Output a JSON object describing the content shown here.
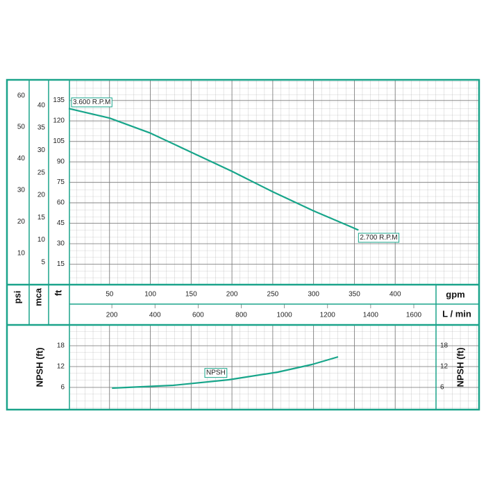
{
  "chart_data": [
    {
      "type": "line",
      "xlabel": "gpm",
      "x2label": "L / min",
      "ylabel": "ft",
      "mca_label": "mca",
      "psi_label": "psi",
      "xlim": [
        0,
        450
      ],
      "xticks": [
        50,
        100,
        150,
        200,
        250,
        300,
        350,
        400
      ],
      "x2lim": [
        0,
        1703
      ],
      "x2ticks": [
        200,
        400,
        600,
        800,
        1000,
        1200,
        1400,
        1600
      ],
      "ylim": [
        0,
        150
      ],
      "yticks": [
        15,
        30,
        45,
        60,
        75,
        90,
        105,
        120,
        135
      ],
      "mca_lim": [
        0,
        45.7
      ],
      "mca_ticks": [
        5,
        10,
        15,
        20,
        25,
        30,
        35,
        40
      ],
      "psi_lim": [
        0,
        65
      ],
      "psi_ticks": [
        10,
        20,
        30,
        40,
        50,
        60
      ],
      "color": "#17a58a",
      "x": [
        0,
        50,
        100,
        150,
        200,
        250,
        300,
        355
      ],
      "values": [
        129,
        122,
        111,
        97,
        83,
        68,
        54,
        40
      ],
      "annotations": [
        "3.600 R.P.M",
        "2.700 R.P.M"
      ]
    },
    {
      "type": "line",
      "ylabel": "NPSH (ft)",
      "xlim": [
        0,
        450
      ],
      "ylim": [
        0,
        24
      ],
      "yticks": [
        6,
        12,
        18
      ],
      "color": "#17a58a",
      "x": [
        53,
        128,
        196,
        256,
        298,
        330
      ],
      "values": [
        5.8,
        6.6,
        8.2,
        10.4,
        12.6,
        14.8
      ],
      "annotation": "NPSH"
    }
  ]
}
